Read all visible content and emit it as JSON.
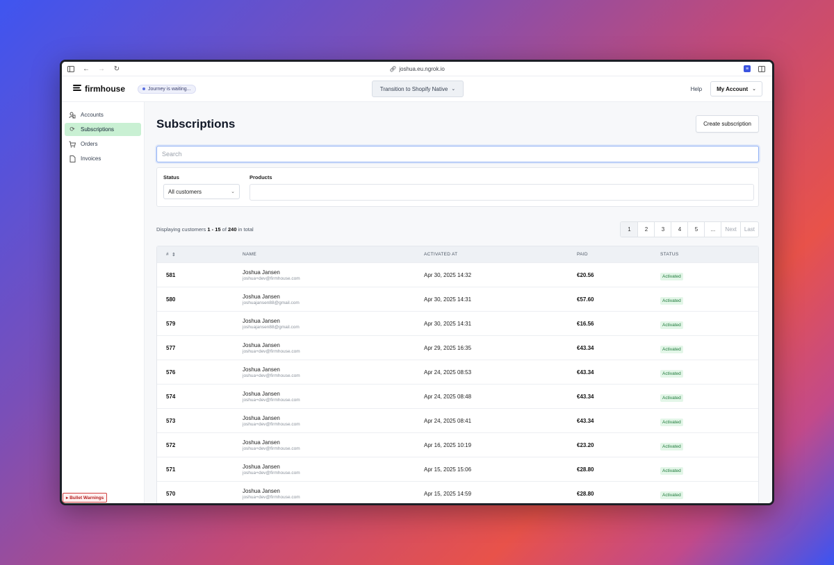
{
  "browser": {
    "url": "joshua.eu.ngrok.io"
  },
  "header": {
    "brand": "firmhouse",
    "journey_status": "Journey is waiting...",
    "transition_label": "Transition to Shopify Native",
    "help_label": "Help",
    "account_label": "My Account"
  },
  "sidebar": {
    "items": [
      {
        "label": "Accounts",
        "icon": "users-icon"
      },
      {
        "label": "Subscriptions",
        "icon": "refresh-icon",
        "active": true
      },
      {
        "label": "Orders",
        "icon": "cart-icon"
      },
      {
        "label": "Invoices",
        "icon": "document-icon"
      }
    ],
    "warning": "▸ Bullet Warnings"
  },
  "main": {
    "title": "Subscriptions",
    "create_label": "Create subscription",
    "search_placeholder": "Search",
    "filters": {
      "status_label": "Status",
      "status_value": "All customers",
      "products_label": "Products"
    },
    "display": {
      "prefix": "Displaying customers",
      "range": "1 - 15",
      "of": "of",
      "total": "240",
      "suffix": "in total"
    },
    "pager": [
      "1",
      "2",
      "3",
      "4",
      "5",
      "...",
      "Next",
      "Last"
    ],
    "columns": {
      "id": "#",
      "name": "NAME",
      "activated": "ACTIVATED AT",
      "paid": "PAID",
      "status": "STATUS"
    },
    "rows": [
      {
        "id": "581",
        "name": "Joshua Jansen",
        "email": "joshua+dev@firmhouse.com",
        "activated": "Apr 30, 2025 14:32",
        "paid": "€20.56",
        "status": "Activated"
      },
      {
        "id": "580",
        "name": "Joshua Jansen",
        "email": "joshuajansen88@gmail.com",
        "activated": "Apr 30, 2025 14:31",
        "paid": "€57.60",
        "status": "Activated"
      },
      {
        "id": "579",
        "name": "Joshua Jansen",
        "email": "joshuajansen88@gmail.com",
        "activated": "Apr 30, 2025 14:31",
        "paid": "€16.56",
        "status": "Activated"
      },
      {
        "id": "577",
        "name": "Joshua Jansen",
        "email": "joshua+dev@firmhouse.com",
        "activated": "Apr 29, 2025 16:35",
        "paid": "€43.34",
        "status": "Activated"
      },
      {
        "id": "576",
        "name": "Joshua Jansen",
        "email": "joshua+dev@firmhouse.com",
        "activated": "Apr 24, 2025 08:53",
        "paid": "€43.34",
        "status": "Activated"
      },
      {
        "id": "574",
        "name": "Joshua Jansen",
        "email": "joshua+dev@firmhouse.com",
        "activated": "Apr 24, 2025 08:48",
        "paid": "€43.34",
        "status": "Activated"
      },
      {
        "id": "573",
        "name": "Joshua Jansen",
        "email": "joshua+dev@firmhouse.com",
        "activated": "Apr 24, 2025 08:41",
        "paid": "€43.34",
        "status": "Activated"
      },
      {
        "id": "572",
        "name": "Joshua Jansen",
        "email": "joshua+dev@firmhouse.com",
        "activated": "Apr 16, 2025 10:19",
        "paid": "€23.20",
        "status": "Activated"
      },
      {
        "id": "571",
        "name": "Joshua Jansen",
        "email": "joshua+dev@firmhouse.com",
        "activated": "Apr 15, 2025 15:06",
        "paid": "€28.80",
        "status": "Activated"
      },
      {
        "id": "570",
        "name": "Joshua Jansen",
        "email": "joshua+dev@firmhouse.com",
        "activated": "Apr 15, 2025 14:59",
        "paid": "€28.80",
        "status": "Activated"
      }
    ]
  }
}
